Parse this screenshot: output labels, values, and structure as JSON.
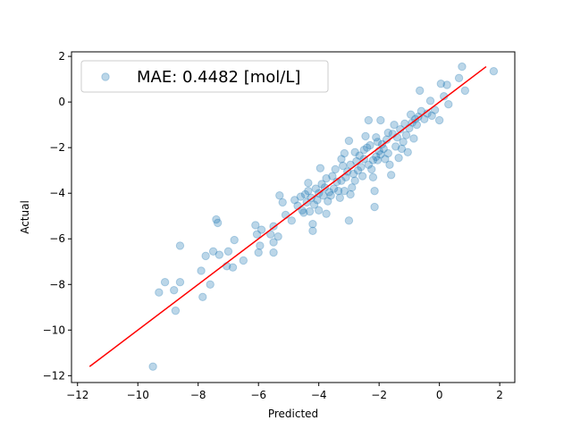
{
  "chart_data": {
    "type": "scatter",
    "title": "",
    "xlabel": "Predicted",
    "ylabel": "Actual",
    "xlim": [
      -12.2,
      2.5
    ],
    "ylim": [
      -12.3,
      2.2
    ],
    "xticks": [
      -12,
      -10,
      -8,
      -6,
      -4,
      -2,
      0,
      2
    ],
    "yticks": [
      -12,
      -10,
      -8,
      -6,
      -4,
      -2,
      0,
      2
    ],
    "tick_labels": {
      "x": [
        "−12",
        "−10",
        "−8",
        "−6",
        "−4",
        "−2",
        "0",
        "2"
      ],
      "y": [
        "−12",
        "−10",
        "−8",
        "−6",
        "−4",
        "−2",
        "0",
        "2"
      ]
    },
    "grid": false,
    "legend": {
      "position": "top-left",
      "entries": [
        "MAE: 0.4482 [mol/L]"
      ]
    },
    "colors": {
      "points": "#1f77b4",
      "fit_line": "#ff0000"
    },
    "series": [
      {
        "name": "MAE: 0.4482 [mol/L]",
        "kind": "scatter",
        "alpha": 0.3,
        "points": [
          [
            -9.5,
            -11.6
          ],
          [
            -9.3,
            -8.35
          ],
          [
            -9.1,
            -7.9
          ],
          [
            -8.8,
            -8.25
          ],
          [
            -8.75,
            -9.15
          ],
          [
            -8.6,
            -6.3
          ],
          [
            -8.6,
            -7.9
          ],
          [
            -7.9,
            -7.4
          ],
          [
            -7.85,
            -8.55
          ],
          [
            -7.75,
            -6.75
          ],
          [
            -7.6,
            -8.0
          ],
          [
            -7.5,
            -6.55
          ],
          [
            -7.4,
            -5.15
          ],
          [
            -7.35,
            -5.3
          ],
          [
            -7.3,
            -6.7
          ],
          [
            -7.05,
            -7.2
          ],
          [
            -7.0,
            -6.55
          ],
          [
            -6.85,
            -7.25
          ],
          [
            -6.8,
            -6.05
          ],
          [
            -6.5,
            -6.95
          ],
          [
            -6.1,
            -5.4
          ],
          [
            -6.05,
            -5.8
          ],
          [
            -6.0,
            -6.6
          ],
          [
            -5.95,
            -6.3
          ],
          [
            -5.9,
            -5.6
          ],
          [
            -5.6,
            -5.8
          ],
          [
            -5.5,
            -6.15
          ],
          [
            -5.5,
            -5.45
          ],
          [
            -5.5,
            -6.6
          ],
          [
            -5.35,
            -5.9
          ],
          [
            -5.3,
            -4.1
          ],
          [
            -5.2,
            -4.4
          ],
          [
            -5.1,
            -4.95
          ],
          [
            -4.9,
            -5.2
          ],
          [
            -4.8,
            -4.3
          ],
          [
            -4.7,
            -4.55
          ],
          [
            -4.6,
            -4.15
          ],
          [
            -4.55,
            -4.75
          ],
          [
            -4.5,
            -4.85
          ],
          [
            -4.45,
            -4.05
          ],
          [
            -4.4,
            -4.4
          ],
          [
            -4.35,
            -3.9
          ],
          [
            -4.3,
            -4.8
          ],
          [
            -4.25,
            -4.2
          ],
          [
            -4.2,
            -5.35
          ],
          [
            -4.2,
            -5.65
          ],
          [
            -4.15,
            -4.5
          ],
          [
            -4.1,
            -3.8
          ],
          [
            -4.05,
            -4.3
          ],
          [
            -4.0,
            -4.0
          ],
          [
            -4.0,
            -4.75
          ],
          [
            -3.95,
            -2.9
          ],
          [
            -3.9,
            -3.6
          ],
          [
            -3.85,
            -4.1
          ],
          [
            -3.8,
            -3.75
          ],
          [
            -3.75,
            -4.9
          ],
          [
            -3.7,
            -4.35
          ],
          [
            -3.65,
            -3.95
          ],
          [
            -3.6,
            -4.1
          ],
          [
            -3.55,
            -3.25
          ],
          [
            -3.5,
            -3.8
          ],
          [
            -3.45,
            -2.95
          ],
          [
            -3.4,
            -3.5
          ],
          [
            -3.35,
            -3.9
          ],
          [
            -3.3,
            -4.2
          ],
          [
            -3.25,
            -3.45
          ],
          [
            -3.2,
            -2.8
          ],
          [
            -3.15,
            -3.9
          ],
          [
            -3.1,
            -3.3
          ],
          [
            -3.05,
            -3.05
          ],
          [
            -3.0,
            -5.2
          ],
          [
            -2.95,
            -4.05
          ],
          [
            -2.9,
            -3.75
          ],
          [
            -2.85,
            -3.15
          ],
          [
            -2.8,
            -3.45
          ],
          [
            -2.75,
            -2.6
          ],
          [
            -2.7,
            -3.0
          ],
          [
            -2.65,
            -2.35
          ],
          [
            -2.6,
            -2.85
          ],
          [
            -2.55,
            -3.25
          ],
          [
            -2.5,
            -2.5
          ],
          [
            -2.45,
            -1.5
          ],
          [
            -2.4,
            -2.0
          ],
          [
            -2.35,
            -2.75
          ],
          [
            -2.3,
            -1.9
          ],
          [
            -2.25,
            -2.95
          ],
          [
            -2.2,
            -3.3
          ],
          [
            -2.15,
            -4.6
          ],
          [
            -2.1,
            -2.4
          ],
          [
            -2.05,
            -1.75
          ],
          [
            -2.0,
            -2.15
          ],
          [
            -1.95,
            -2.3
          ],
          [
            -1.9,
            -1.85
          ],
          [
            -1.85,
            -2.05
          ],
          [
            -1.8,
            -2.5
          ],
          [
            -1.75,
            -1.65
          ],
          [
            -1.7,
            -2.25
          ],
          [
            -1.65,
            -2.75
          ],
          [
            -1.6,
            -3.2
          ],
          [
            -1.55,
            -1.4
          ],
          [
            -1.5,
            -1.0
          ],
          [
            -1.45,
            -1.95
          ],
          [
            -1.4,
            -1.55
          ],
          [
            -1.35,
            -2.45
          ],
          [
            -1.3,
            -1.2
          ],
          [
            -1.25,
            -2.05
          ],
          [
            -1.2,
            -1.75
          ],
          [
            -1.15,
            -0.95
          ],
          [
            -1.1,
            -1.45
          ],
          [
            -1.05,
            -2.2
          ],
          [
            -1.0,
            -1.15
          ],
          [
            -0.95,
            -0.55
          ],
          [
            -0.9,
            -0.9
          ],
          [
            -0.85,
            -1.6
          ],
          [
            -0.8,
            -0.75
          ],
          [
            -0.75,
            -1.0
          ],
          [
            -0.7,
            -0.65
          ],
          [
            -0.65,
            0.5
          ],
          [
            -0.6,
            -0.4
          ],
          [
            -0.5,
            -0.75
          ],
          [
            -0.4,
            -0.5
          ],
          [
            -0.3,
            0.05
          ],
          [
            -0.25,
            -0.6
          ],
          [
            -0.15,
            -0.35
          ],
          [
            0.0,
            -0.8
          ],
          [
            0.05,
            0.8
          ],
          [
            0.15,
            0.25
          ],
          [
            0.25,
            0.75
          ],
          [
            0.3,
            -0.1
          ],
          [
            0.65,
            1.05
          ],
          [
            0.75,
            1.55
          ],
          [
            0.85,
            0.5
          ],
          [
            1.8,
            1.35
          ],
          [
            -2.35,
            -0.8
          ],
          [
            -1.95,
            -0.8
          ],
          [
            -3.0,
            -1.7
          ],
          [
            -3.25,
            -2.5
          ],
          [
            -4.35,
            -3.55
          ],
          [
            -3.75,
            -3.35
          ],
          [
            -2.95,
            -2.75
          ],
          [
            -2.5,
            -2.1
          ],
          [
            -2.1,
            -1.55
          ],
          [
            -1.7,
            -1.35
          ],
          [
            -2.15,
            -3.9
          ],
          [
            -2.8,
            -2.2
          ],
          [
            -2.05,
            -2.55
          ],
          [
            -3.15,
            -2.25
          ],
          [
            -2.2,
            -2.55
          ]
        ]
      },
      {
        "name": "",
        "kind": "line",
        "x": [
          -11.6,
          1.55
        ],
        "y": [
          -11.6,
          1.55
        ]
      }
    ]
  }
}
